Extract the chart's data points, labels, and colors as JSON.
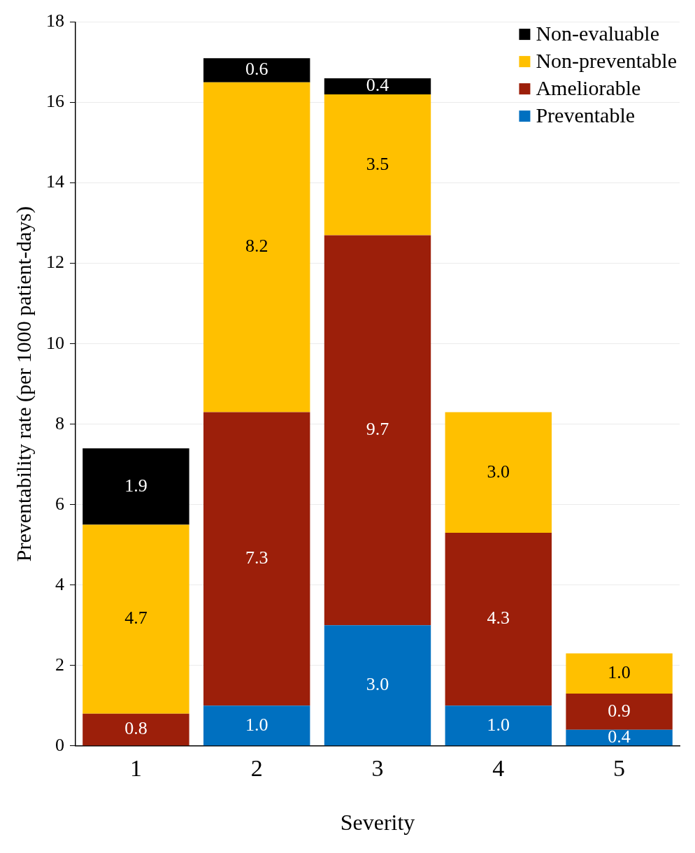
{
  "chart_data": {
    "type": "bar",
    "stacked": true,
    "xlabel": "Severity",
    "ylabel": "Preventability rate (per 1000 patient-days)",
    "categories": [
      "1",
      "2",
      "3",
      "4",
      "5"
    ],
    "ylim": [
      0,
      18
    ],
    "yticks": [
      0,
      2,
      4,
      6,
      8,
      10,
      12,
      14,
      16,
      18
    ],
    "grid": "y",
    "legend": "top right",
    "data_labels": true,
    "series": [
      {
        "name": "Preventable",
        "color": "#0070c0",
        "values": [
          null,
          1.0,
          3.0,
          1.0,
          0.4
        ],
        "value_labels": [
          null,
          "1.0",
          "3.0",
          "1.0",
          "0.4"
        ]
      },
      {
        "name": "Ameliorable",
        "color": "#9c1f0a",
        "values": [
          0.8,
          7.3,
          9.7,
          4.3,
          0.9
        ],
        "value_labels": [
          "0.8",
          "7.3",
          "9.7",
          "4.3",
          "0.9"
        ]
      },
      {
        "name": "Non-preventable",
        "color": "#ffc000",
        "values": [
          4.7,
          8.2,
          3.5,
          3.0,
          1.0
        ],
        "value_labels": [
          "4.7",
          "8.2",
          "3.5",
          "3.0",
          "1.0"
        ]
      },
      {
        "name": "Non-evaluable",
        "color": "#000000",
        "values": [
          1.9,
          0.6,
          0.4,
          null,
          null
        ],
        "value_labels": [
          "1.9",
          "0.6",
          "0.4",
          null,
          null
        ]
      }
    ]
  }
}
